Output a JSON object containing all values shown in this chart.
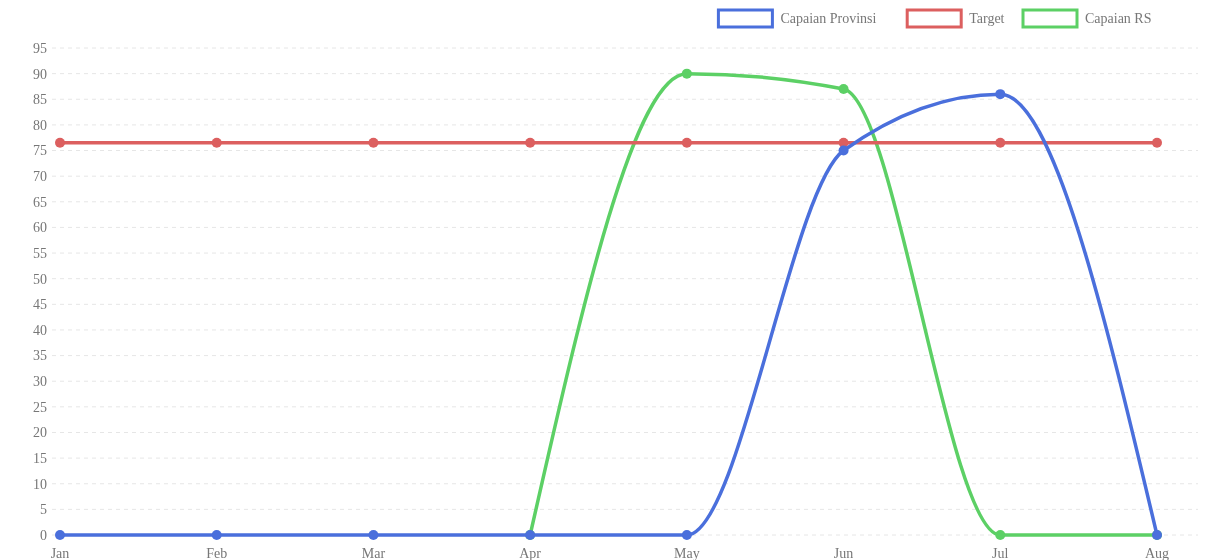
{
  "chart_data": {
    "type": "line",
    "categories": [
      "Jan",
      "Feb",
      "Mar",
      "Apr",
      "May",
      "Jun",
      "Jul",
      "Aug"
    ],
    "series": [
      {
        "name": "Capaian Provinsi",
        "color": "#4a6fdc",
        "values": [
          0,
          0,
          0,
          0,
          0,
          75,
          86,
          0
        ]
      },
      {
        "name": "Target",
        "color": "#dc5f5f",
        "values": [
          76.5,
          76.5,
          76.5,
          76.5,
          76.5,
          76.5,
          76.5,
          76.5
        ]
      },
      {
        "name": "Capaian RS",
        "color": "#5cd065",
        "values": [
          null,
          null,
          null,
          0,
          90,
          87,
          0,
          0
        ]
      }
    ],
    "ylim": [
      0,
      95
    ],
    "yticks": [
      0,
      5,
      10,
      15,
      20,
      25,
      30,
      35,
      40,
      45,
      50,
      55,
      60,
      65,
      70,
      75,
      80,
      85,
      90,
      95
    ],
    "grid": "y",
    "legend": "top right",
    "marker": "circle",
    "line_style": "solid"
  }
}
